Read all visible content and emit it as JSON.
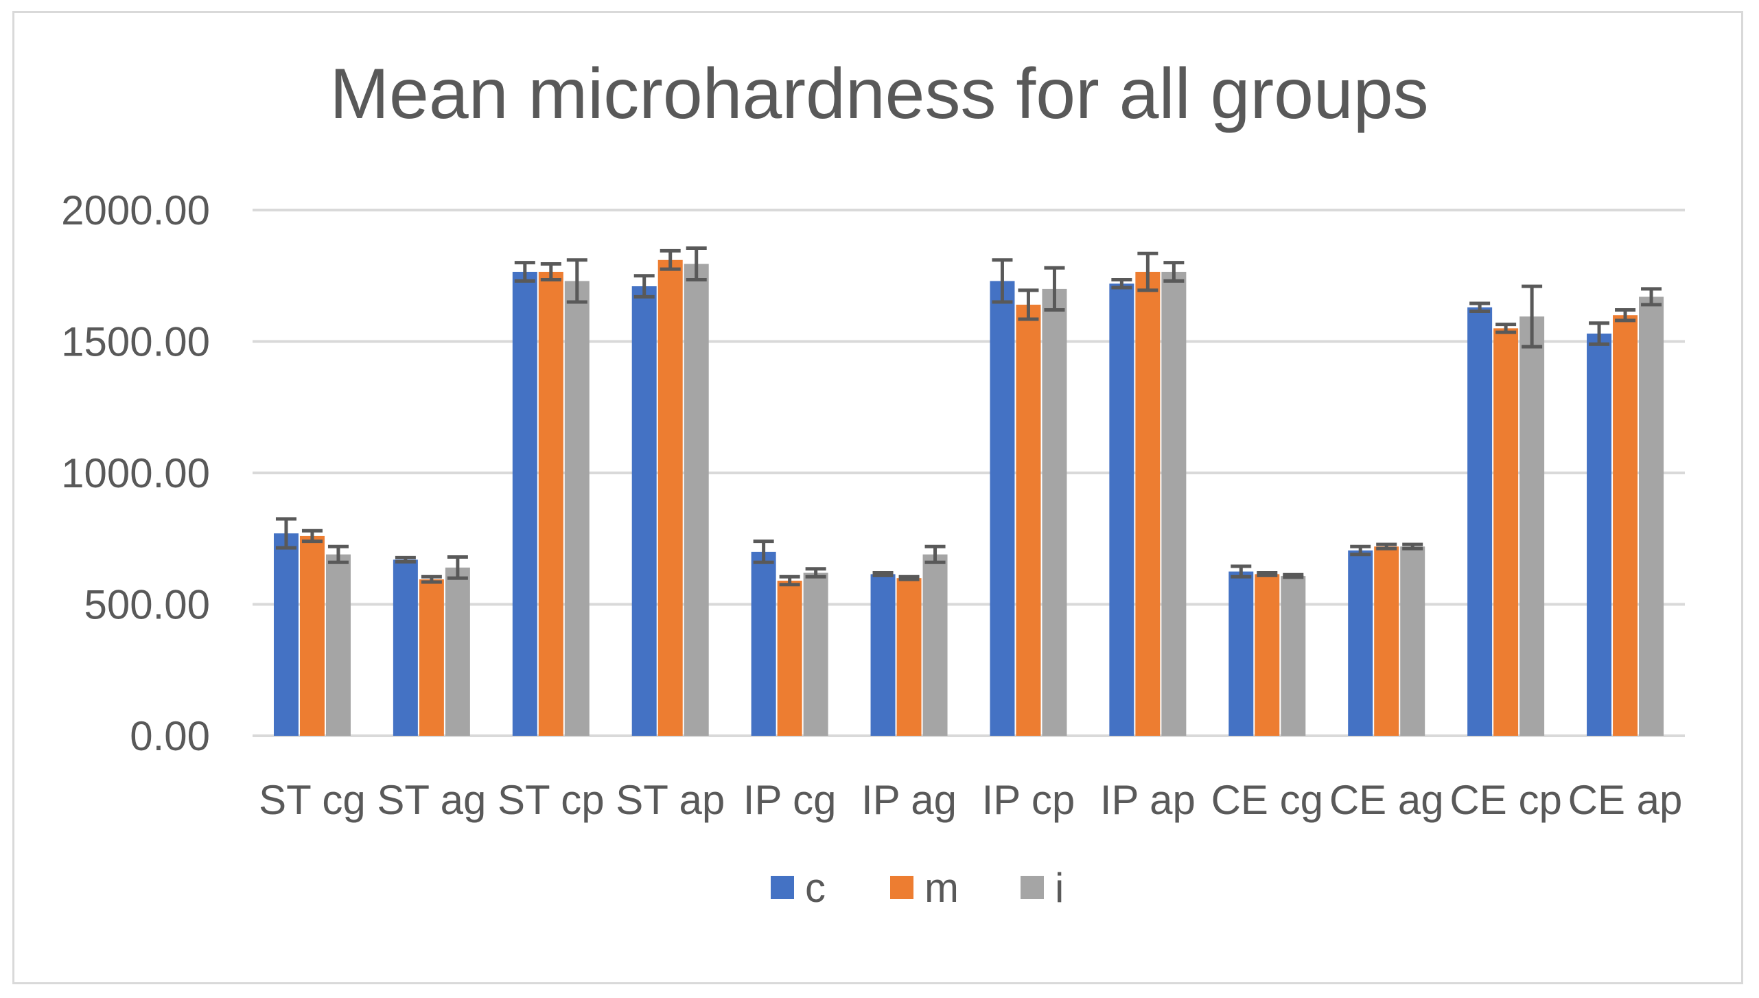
{
  "chart_data": {
    "type": "bar",
    "title": "Mean microhardness for all groups",
    "xlabel": "",
    "ylabel": "",
    "ylim": [
      0,
      2000
    ],
    "yticks": [
      "0.00",
      "500.00",
      "1000.00",
      "1500.00",
      "2000.00"
    ],
    "ytick_values": [
      0,
      500,
      1000,
      1500,
      2000
    ],
    "grid": true,
    "legend_position": "bottom",
    "error_bars": true,
    "categories": [
      "ST cg",
      "ST ag",
      "ST cp",
      "ST ap",
      "IP cg",
      "IP ag",
      "IP cp",
      "IP ap",
      "CE cg",
      "CE ag",
      "CE cp",
      "CE ap"
    ],
    "series": [
      {
        "name": "c",
        "color": "#4472c4",
        "values": [
          770,
          670,
          1765,
          1710,
          700,
          615,
          1730,
          1720,
          625,
          705,
          1630,
          1530
        ],
        "errors": [
          55,
          8,
          35,
          40,
          40,
          5,
          80,
          15,
          20,
          15,
          15,
          40
        ]
      },
      {
        "name": "m",
        "color": "#ed7d31",
        "values": [
          760,
          595,
          1765,
          1810,
          590,
          600,
          1640,
          1765,
          615,
          720,
          1550,
          1600
        ],
        "errors": [
          20,
          10,
          30,
          35,
          15,
          5,
          55,
          70,
          5,
          8,
          15,
          20
        ]
      },
      {
        "name": "i",
        "color": "#a5a5a5",
        "values": [
          690,
          640,
          1730,
          1795,
          620,
          690,
          1700,
          1765,
          608,
          720,
          1595,
          1670
        ],
        "errors": [
          30,
          40,
          80,
          60,
          15,
          30,
          80,
          35,
          5,
          8,
          115,
          30
        ]
      }
    ]
  }
}
